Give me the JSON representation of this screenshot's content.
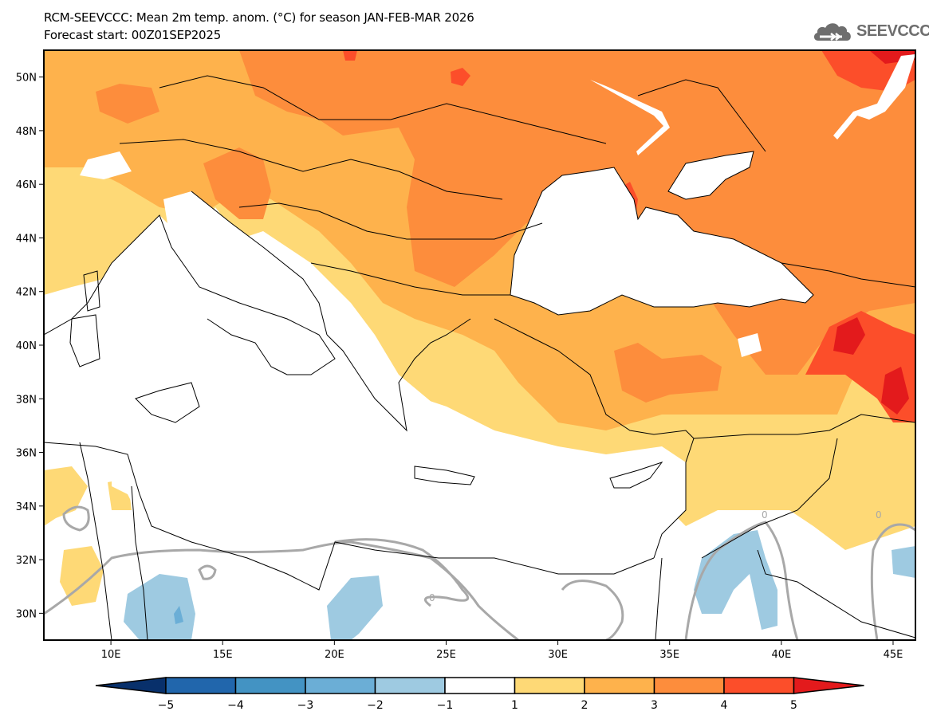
{
  "header": {
    "title": "RCM-SEEVCCC: Mean 2m temp. anom. (°C) for season JAN-FEB-MAR 2026",
    "forecast_start": "Forecast start: 00Z01SEP2025",
    "logo_text": "SEEVCCC",
    "logo_icon": "cloud-icon"
  },
  "map": {
    "variable": "Mean 2m temperature anomaly",
    "units": "°C",
    "season": "JAN-FEB-MAR 2026",
    "lon_range": [
      7,
      46
    ],
    "lat_range": [
      29,
      51
    ],
    "lon_ticks": [
      "10E",
      "15E",
      "20E",
      "25E",
      "30E",
      "35E",
      "40E",
      "45E"
    ],
    "lon_tick_values": [
      10,
      15,
      20,
      25,
      30,
      35,
      40,
      45
    ],
    "lat_ticks": [
      "50N",
      "48N",
      "46N",
      "44N",
      "42N",
      "40N",
      "38N",
      "36N",
      "34N",
      "32N",
      "30N"
    ],
    "lat_tick_values": [
      50,
      48,
      46,
      44,
      42,
      40,
      38,
      36,
      34,
      32,
      30
    ],
    "zero_contour_label": "0"
  },
  "colorbar": {
    "labels": [
      "-5",
      "-4",
      "-3",
      "-2",
      "-1",
      "1",
      "2",
      "3",
      "4",
      "5"
    ],
    "bins": [
      {
        "range": "<-5",
        "color": "#08306b"
      },
      {
        "range": "-5 to -4",
        "color": "#2166ac"
      },
      {
        "range": "-4 to -3",
        "color": "#4393c3"
      },
      {
        "range": "-3 to -2",
        "color": "#6baed6"
      },
      {
        "range": "-2 to -1",
        "color": "#9ecae1"
      },
      {
        "range": "-1 to 1",
        "color": "#ffffff"
      },
      {
        "range": "1 to 2",
        "color": "#fed976"
      },
      {
        "range": "2 to 3",
        "color": "#feb24c"
      },
      {
        "range": "3 to 4",
        "color": "#fd8d3c"
      },
      {
        "range": "4 to 5",
        "color": "#fc4e2a"
      },
      {
        "range": ">5",
        "color": "#e31a1c"
      }
    ]
  }
}
